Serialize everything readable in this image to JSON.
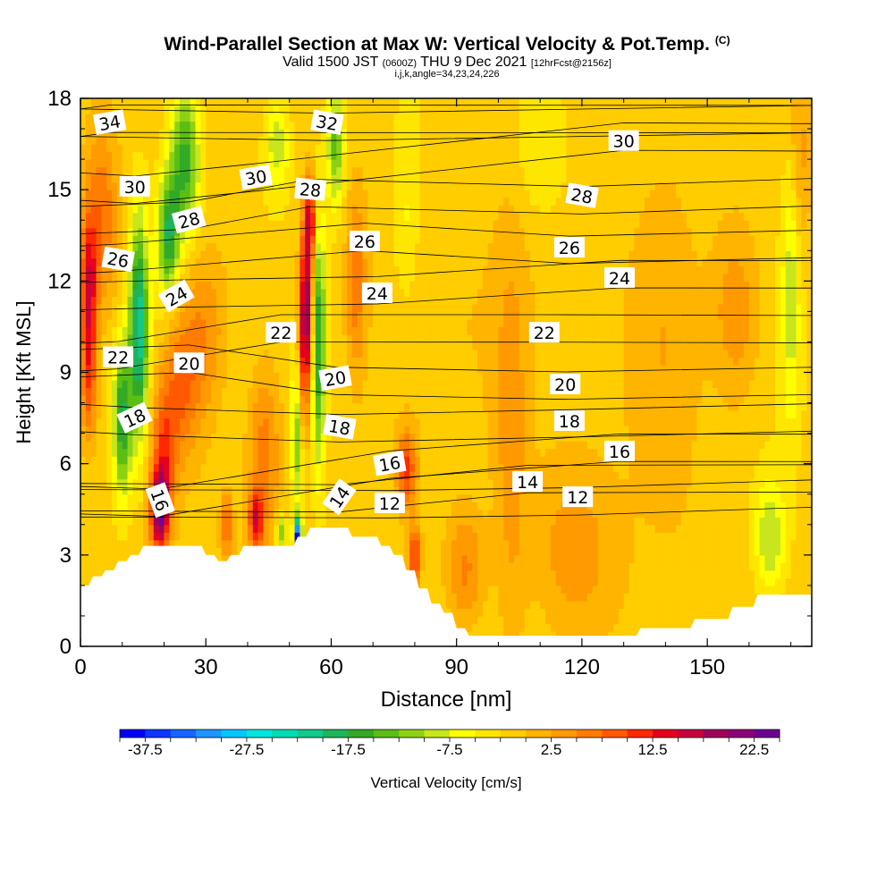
{
  "title": "Wind-Parallel Section at Max W: Vertical Velocity & Pot.Temp.",
  "title_mark": "(C)",
  "subtitle_main": "Valid 1500 JST",
  "subtitle_zulu": "(0600Z)",
  "subtitle_date": "THU 9 Dec 2021",
  "subtitle_run": "[12hrFcst@2156z]",
  "subtitle2": "i,j,k,angle=34,23,24,226",
  "chart_data": {
    "type": "heatmap",
    "title": "Wind-Parallel Section at Max W: Vertical Velocity & Pot.Temp.",
    "xlabel": "Distance [nm]",
    "ylabel": "Height [Kft MSL]",
    "xlim": [
      0,
      175
    ],
    "ylim": [
      0,
      18
    ],
    "x_ticks": [
      "0",
      "30",
      "60",
      "90",
      "120",
      "150"
    ],
    "x_tick_values": [
      0,
      30,
      60,
      90,
      120,
      150
    ],
    "y_ticks": [
      "0",
      "3",
      "6",
      "9",
      "12",
      "15",
      "18"
    ],
    "y_tick_values": [
      0,
      3,
      6,
      9,
      12,
      15,
      18
    ],
    "colorbar": {
      "label": "Vertical Velocity [cm/s]",
      "tick_labels": [
        "-37.5",
        "-27.5",
        "-17.5",
        "-7.5",
        "2.5",
        "12.5",
        "22.5"
      ],
      "tick_values": [
        -37.5,
        -27.5,
        -17.5,
        -7.5,
        2.5,
        12.5,
        22.5
      ],
      "min": -40,
      "max": 25,
      "step": 2.5,
      "colors": [
        "#0000ff",
        "#0a37ff",
        "#1466ff",
        "#1e96ff",
        "#00c8ff",
        "#00e6dc",
        "#00dcb4",
        "#14c88c",
        "#1eb45a",
        "#32aa28",
        "#5abe14",
        "#8cd214",
        "#c8e61e",
        "#ffff00",
        "#ffe600",
        "#ffcd00",
        "#ffb400",
        "#ff9b00",
        "#ff7d00",
        "#ff5a00",
        "#ff2800",
        "#e6001e",
        "#c8003c",
        "#a0005a",
        "#8c0078",
        "#6e0091"
      ]
    },
    "terrain": [
      [
        0,
        2.0
      ],
      [
        2,
        2.0
      ],
      [
        3,
        2.3
      ],
      [
        5,
        2.3
      ],
      [
        6,
        2.5
      ],
      [
        8,
        2.5
      ],
      [
        9,
        2.8
      ],
      [
        11,
        2.8
      ],
      [
        12,
        3.0
      ],
      [
        14,
        3.0
      ],
      [
        15,
        3.3
      ],
      [
        29,
        3.3
      ],
      [
        30,
        3.0
      ],
      [
        32,
        3.0
      ],
      [
        33,
        2.8
      ],
      [
        35,
        2.8
      ],
      [
        36,
        3.0
      ],
      [
        38,
        3.0
      ],
      [
        39,
        3.3
      ],
      [
        51,
        3.3
      ],
      [
        52,
        3.6
      ],
      [
        54,
        3.6
      ],
      [
        55,
        3.9
      ],
      [
        64,
        3.9
      ],
      [
        65,
        3.6
      ],
      [
        71,
        3.6
      ],
      [
        72,
        3.3
      ],
      [
        74,
        3.3
      ],
      [
        75,
        3.0
      ],
      [
        77,
        3.0
      ],
      [
        78,
        2.5
      ],
      [
        80,
        2.5
      ],
      [
        81,
        1.9
      ],
      [
        83,
        1.9
      ],
      [
        84,
        1.4
      ],
      [
        86,
        1.4
      ],
      [
        87,
        1.1
      ],
      [
        89,
        1.1
      ],
      [
        90,
        0.6
      ],
      [
        92,
        0.6
      ],
      [
        93,
        0.35
      ],
      [
        133,
        0.35
      ],
      [
        134,
        0.6
      ],
      [
        146,
        0.6
      ],
      [
        147,
        0.9
      ],
      [
        155,
        0.9
      ],
      [
        156,
        1.3
      ],
      [
        161,
        1.3
      ],
      [
        162,
        1.7
      ],
      [
        175,
        1.7
      ]
    ],
    "theta_contours": {
      "units": "°C",
      "labels": [
        {
          "text": "34",
          "x": 7,
          "y": 17.2,
          "angle": -10
        },
        {
          "text": "32",
          "x": 59,
          "y": 17.2,
          "angle": 10
        },
        {
          "text": "30",
          "x": 130,
          "y": 16.6,
          "angle": 0
        },
        {
          "text": "30",
          "x": 13,
          "y": 15.1,
          "angle": 0
        },
        {
          "text": "30",
          "x": 42,
          "y": 15.4,
          "angle": -10
        },
        {
          "text": "28",
          "x": 55,
          "y": 15.0,
          "angle": 5
        },
        {
          "text": "28",
          "x": 120,
          "y": 14.8,
          "angle": 10
        },
        {
          "text": "28",
          "x": 26,
          "y": 14.0,
          "angle": -15
        },
        {
          "text": "26",
          "x": 68,
          "y": 13.3,
          "angle": 0
        },
        {
          "text": "26",
          "x": 117,
          "y": 13.1,
          "angle": 0
        },
        {
          "text": "26",
          "x": 9,
          "y": 12.7,
          "angle": 10
        },
        {
          "text": "24",
          "x": 129,
          "y": 12.1,
          "angle": 0
        },
        {
          "text": "24",
          "x": 71,
          "y": 11.6,
          "angle": 0
        },
        {
          "text": "24",
          "x": 23,
          "y": 11.5,
          "angle": -30
        },
        {
          "text": "22",
          "x": 48,
          "y": 10.3,
          "angle": 0
        },
        {
          "text": "22",
          "x": 111,
          "y": 10.3,
          "angle": 0
        },
        {
          "text": "22",
          "x": 9,
          "y": 9.5,
          "angle": 0
        },
        {
          "text": "20",
          "x": 26,
          "y": 9.3,
          "angle": 0
        },
        {
          "text": "20",
          "x": 61,
          "y": 8.8,
          "angle": -10
        },
        {
          "text": "20",
          "x": 116,
          "y": 8.6,
          "angle": 0
        },
        {
          "text": "18",
          "x": 13,
          "y": 7.5,
          "angle": -25
        },
        {
          "text": "18",
          "x": 62,
          "y": 7.2,
          "angle": 10
        },
        {
          "text": "18",
          "x": 117,
          "y": 7.4,
          "angle": 0
        },
        {
          "text": "16",
          "x": 74,
          "y": 6.0,
          "angle": -10
        },
        {
          "text": "16",
          "x": 129,
          "y": 6.4,
          "angle": 0
        },
        {
          "text": "16",
          "x": 19,
          "y": 4.8,
          "angle": 70
        },
        {
          "text": "14",
          "x": 62,
          "y": 4.9,
          "angle": -55
        },
        {
          "text": "14",
          "x": 107,
          "y": 5.4,
          "angle": 0
        },
        {
          "text": "12",
          "x": 74,
          "y": 4.7,
          "angle": 0
        },
        {
          "text": "12",
          "x": 119,
          "y": 4.9,
          "angle": 0
        }
      ]
    },
    "w_features": [
      {
        "x": 19,
        "y": 4.5,
        "sx": 2.2,
        "sy": 1.3,
        "v": 24
      },
      {
        "x": 20,
        "y": 6.5,
        "sx": 3,
        "sy": 2.0,
        "v": 10
      },
      {
        "x": 24,
        "y": 8.5,
        "sx": 5,
        "sy": 2.5,
        "v": 9
      },
      {
        "x": 30,
        "y": 10.5,
        "sx": 6,
        "sy": 3,
        "v": 7
      },
      {
        "x": 44,
        "y": 6.5,
        "sx": 4,
        "sy": 3,
        "v": 8
      },
      {
        "x": 42,
        "y": 4.2,
        "sx": 1.6,
        "sy": 1,
        "v": 14
      },
      {
        "x": 35,
        "y": 4.0,
        "sx": 1.3,
        "sy": 1,
        "v": 10
      },
      {
        "x": 54,
        "y": 11.0,
        "sx": 1.6,
        "sy": 2.5,
        "v": 22
      },
      {
        "x": 55,
        "y": 14.0,
        "sx": 1.5,
        "sy": 1.5,
        "v": 16
      },
      {
        "x": 53,
        "y": 8.0,
        "sx": 1.5,
        "sy": 2.5,
        "v": 9
      },
      {
        "x": 2,
        "y": 11.5,
        "sx": 1.8,
        "sy": 2.5,
        "v": 15
      },
      {
        "x": 5,
        "y": 14,
        "sx": 4,
        "sy": 3,
        "v": 9
      },
      {
        "x": 2,
        "y": 8.5,
        "sx": 2,
        "sy": 2,
        "v": 8
      },
      {
        "x": 14,
        "y": 10.5,
        "sx": 2.2,
        "sy": 3.5,
        "v": -20
      },
      {
        "x": 10,
        "y": 7.5,
        "sx": 2.2,
        "sy": 2.5,
        "v": -16
      },
      {
        "x": 25,
        "y": 16,
        "sx": 3.5,
        "sy": 2.5,
        "v": -15
      },
      {
        "x": 21,
        "y": 13.5,
        "sx": 2.5,
        "sy": 2,
        "v": -15
      },
      {
        "x": 57,
        "y": 10,
        "sx": 1.6,
        "sy": 4,
        "v": -16
      },
      {
        "x": 52,
        "y": 7,
        "sx": 1.5,
        "sy": 2.5,
        "v": -14
      },
      {
        "x": 52,
        "y": 3.6,
        "sx": 0.9,
        "sy": 0.6,
        "v": -36
      },
      {
        "x": 48,
        "y": 3.7,
        "sx": 1.2,
        "sy": 0.7,
        "v": -12
      },
      {
        "x": 61,
        "y": 16.5,
        "sx": 2,
        "sy": 2,
        "v": -12
      },
      {
        "x": 47,
        "y": 16.5,
        "sx": 3,
        "sy": 1.5,
        "v": -8
      },
      {
        "x": 80,
        "y": 3,
        "sx": 1.5,
        "sy": 1,
        "v": 14
      },
      {
        "x": 78,
        "y": 5.8,
        "sx": 2.5,
        "sy": 1.3,
        "v": 12
      },
      {
        "x": 92,
        "y": 2.5,
        "sx": 5,
        "sy": 2,
        "v": 8
      },
      {
        "x": 103,
        "y": 6,
        "sx": 4,
        "sy": 8,
        "v": 5
      },
      {
        "x": 118,
        "y": 3,
        "sx": 10,
        "sy": 3,
        "v": 6
      },
      {
        "x": 140,
        "y": 10,
        "sx": 10,
        "sy": 5,
        "v": 5
      },
      {
        "x": 157,
        "y": 11,
        "sx": 6,
        "sy": 3,
        "v": 7
      },
      {
        "x": 165,
        "y": 3.5,
        "sx": 4,
        "sy": 2,
        "v": -9
      },
      {
        "x": 170,
        "y": 12,
        "sx": 2,
        "sy": 5,
        "v": -7
      },
      {
        "x": 172,
        "y": 16,
        "sx": 3,
        "sy": 3,
        "v": 5
      },
      {
        "x": 110,
        "y": 16,
        "sx": 6,
        "sy": 2,
        "v": -3
      },
      {
        "x": 78,
        "y": 14,
        "sx": 3,
        "sy": 3,
        "v": -4
      },
      {
        "x": 66,
        "y": 12,
        "sx": 2.5,
        "sy": 3,
        "v": 8
      }
    ]
  }
}
